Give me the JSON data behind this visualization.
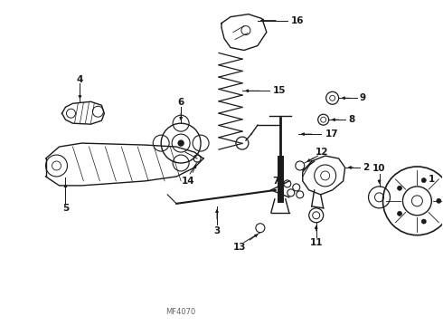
{
  "background_color": "#ffffff",
  "watermark": "MF4070",
  "fig_width": 4.9,
  "fig_height": 3.6,
  "dpi": 100,
  "line_color": "#1a1a1a",
  "label_fontsize": 7.5
}
